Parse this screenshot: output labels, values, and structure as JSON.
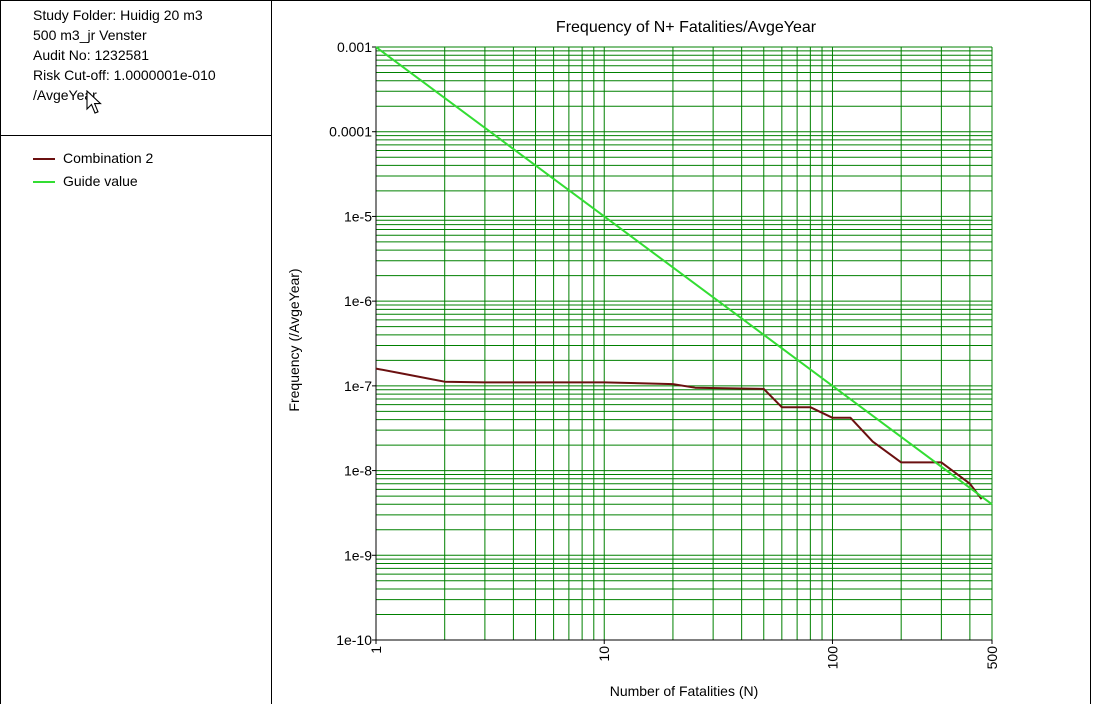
{
  "info": {
    "lines": [
      "Study Folder: Huidig 20 m3",
      "500 m3_jr Venster",
      "Audit No: 1232581",
      "Risk Cut-off: 1.0000001e-010",
      "/AvgeYear"
    ]
  },
  "legend": [
    {
      "label": "Combination 2",
      "color": "#6b1010"
    },
    {
      "label": "Guide value",
      "color": "#33dd33"
    }
  ],
  "chart_data": {
    "type": "line",
    "title": "Frequency of N+ Fatalities/AvgeYear",
    "xlabel": "Number of Fatalities (N)",
    "ylabel": "Frequency (/AvgeYear)",
    "xscale": "log",
    "yscale": "log",
    "xlim": [
      1,
      500
    ],
    "ylim": [
      1e-10,
      0.001
    ],
    "x_tick_labels": [
      {
        "value": 1,
        "label": "1"
      },
      {
        "value": 10,
        "label": "10"
      },
      {
        "value": 100,
        "label": "100"
      },
      {
        "value": 500,
        "label": "500"
      }
    ],
    "y_tick_labels": [
      {
        "value": 0.001,
        "label": "0.001"
      },
      {
        "value": 0.0001,
        "label": "0.0001"
      },
      {
        "value": 1e-05,
        "label": "1e-5"
      },
      {
        "value": 1e-06,
        "label": "1e-6"
      },
      {
        "value": 1e-07,
        "label": "1e-7"
      },
      {
        "value": 1e-08,
        "label": "1e-8"
      },
      {
        "value": 1e-09,
        "label": "1e-9"
      },
      {
        "value": 1e-10,
        "label": "1e-10"
      }
    ],
    "grid": true,
    "grid_color": "#008000",
    "series": [
      {
        "name": "Combination 2",
        "color": "#6b1010",
        "points": [
          [
            1,
            1.6e-07
          ],
          [
            1.3,
            1.4e-07
          ],
          [
            2,
            1.12e-07
          ],
          [
            3,
            1.1e-07
          ],
          [
            10,
            1.1e-07
          ],
          [
            20,
            1.05e-07
          ],
          [
            25,
            9.5e-08
          ],
          [
            50,
            9.2e-08
          ],
          [
            60,
            5.6e-08
          ],
          [
            80,
            5.6e-08
          ],
          [
            100,
            4.2e-08
          ],
          [
            120,
            4.2e-08
          ],
          [
            150,
            2.2e-08
          ],
          [
            200,
            1.25e-08
          ],
          [
            300,
            1.25e-08
          ],
          [
            400,
            7e-09
          ],
          [
            450,
            4.6e-09
          ]
        ]
      },
      {
        "name": "Guide value",
        "color": "#33dd33",
        "points": [
          [
            1,
            0.001
          ],
          [
            500,
            4e-09
          ]
        ]
      }
    ]
  }
}
